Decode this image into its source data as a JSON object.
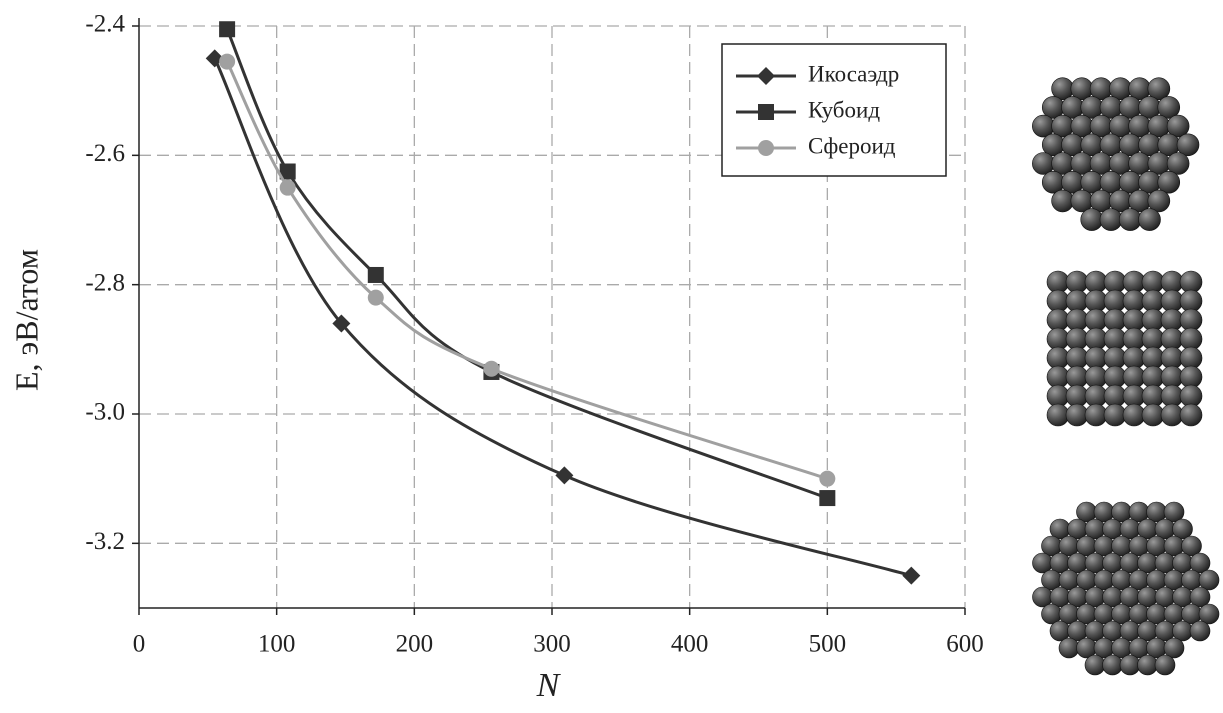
{
  "chart_data": {
    "type": "line",
    "x_label": "N",
    "y_label": "E, эВ/атом",
    "xlim": [
      0,
      600
    ],
    "xticks": [
      0,
      100,
      200,
      300,
      400,
      500,
      600
    ],
    "ylim": [
      -3.3,
      -2.4
    ],
    "yticks": [
      -2.4,
      -2.6,
      -2.8,
      {
        "value": -3,
        "label": "-3.0"
      },
      -3.2
    ],
    "grid": true,
    "legend": "upper right",
    "series": [
      {
        "name": "Икосаэдр",
        "color": "#333333",
        "marker": "diamond",
        "x": [
          55,
          147,
          309,
          561
        ],
        "values": [
          -2.45,
          -2.86,
          -3.095,
          -3.25
        ]
      },
      {
        "name": "Кубоид",
        "color": "#333333",
        "marker": "square",
        "x": [
          64,
          108,
          172,
          256,
          500
        ],
        "values": [
          -2.405,
          -2.625,
          -2.785,
          -2.935,
          -3.13
        ]
      },
      {
        "name": "Сфероид",
        "color": "#a0a0a0",
        "marker": "circle",
        "x": [
          64,
          108,
          172,
          256,
          500
        ],
        "values": [
          -2.455,
          -2.65,
          -2.82,
          -2.93,
          -3.1
        ]
      }
    ]
  }
}
